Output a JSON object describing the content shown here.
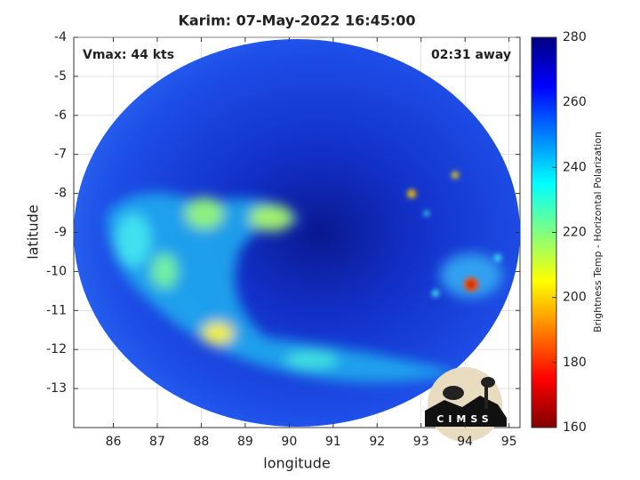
{
  "chart_data": {
    "type": "image",
    "title": "Karim: 07-May-2022 16:45:00",
    "annotations": [
      "Vmax: 44 kts",
      "02:31 away"
    ],
    "xlabel": "longitude",
    "ylabel": "latitude",
    "xlim": [
      85.1,
      95.25
    ],
    "ylim": [
      -14,
      -4
    ],
    "xticks": [
      86,
      87,
      88,
      89,
      90,
      91,
      92,
      93,
      94,
      95
    ],
    "yticks": [
      -4,
      -5,
      -6,
      -7,
      -8,
      -9,
      -10,
      -11,
      -12,
      -13
    ],
    "grid": true,
    "colorbar": {
      "label": "Brightness Temp - Horizontal Polarization",
      "lim": [
        160,
        280
      ],
      "ticks": [
        160,
        180,
        200,
        220,
        240,
        260,
        280
      ],
      "colors": [
        "#800000",
        "#ff0000",
        "#ff8000",
        "#ffff00",
        "#80ff80",
        "#00ffff",
        "#0080ff",
        "#0000ff",
        "#000080"
      ]
    },
    "logo_text": "CIMSS"
  }
}
